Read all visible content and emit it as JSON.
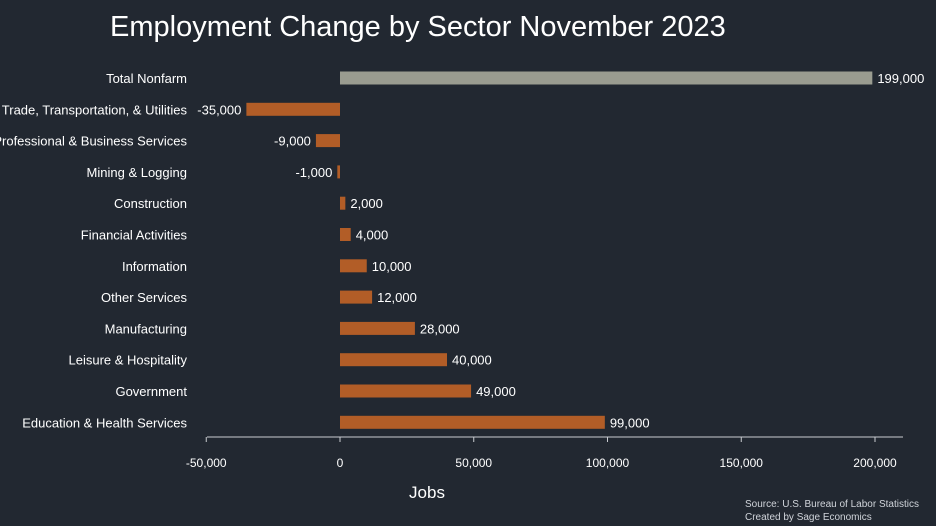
{
  "chart_data": {
    "type": "bar",
    "orientation": "horizontal",
    "title": "Employment Change by Sector November 2023",
    "xlabel": "Jobs",
    "ylabel": "",
    "categories": [
      "Total Nonfarm",
      "Trade, Transportation, & Utilities",
      "Professional & Business Services",
      "Mining & Logging",
      "Construction",
      "Financial Activities",
      "Information",
      "Other Services",
      "Manufacturing",
      "Leisure & Hospitality",
      "Government",
      "Education & Health Services"
    ],
    "values": [
      199000,
      -35000,
      -9000,
      -1000,
      2000,
      4000,
      10000,
      12000,
      28000,
      40000,
      49000,
      99000
    ],
    "value_labels": [
      "199,000",
      "-35,000",
      "-9,000",
      "-1,000",
      "2,000",
      "4,000",
      "10,000",
      "12,000",
      "28,000",
      "40,000",
      "49,000",
      "99,000"
    ],
    "xlim": [
      -50000,
      210000
    ],
    "xticks": [
      -50000,
      0,
      50000,
      100000,
      150000,
      200000
    ],
    "xtick_labels": [
      "-50,000",
      "0",
      "50,000",
      "100,000",
      "150,000",
      "200,000"
    ],
    "colors": {
      "total": "#9a9c90",
      "sector": "#b25d27",
      "axis": "#c9ccd1",
      "background": "#222831"
    },
    "grid": false,
    "legend": "none"
  },
  "source": {
    "line1": "Source: U.S. Bureau of Labor Statistics",
    "line2": "Created by Sage Economics"
  }
}
